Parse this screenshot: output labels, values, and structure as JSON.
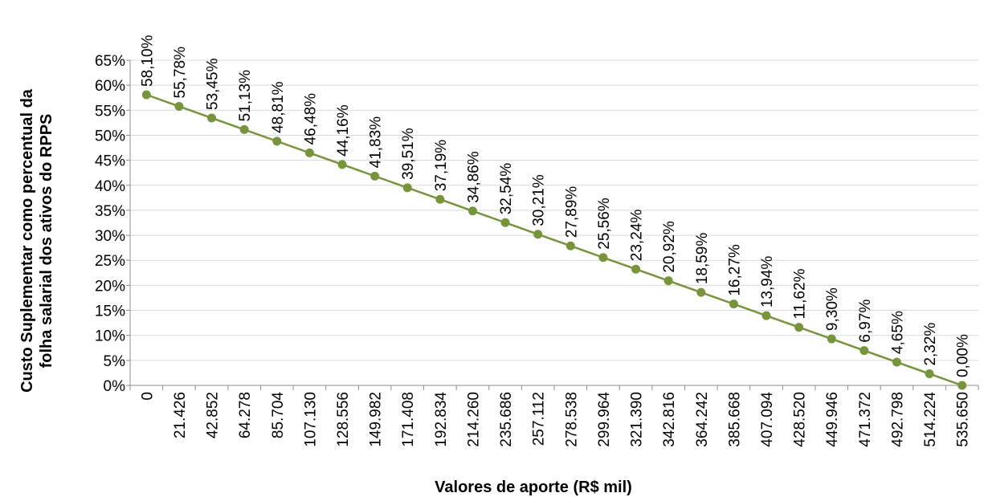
{
  "chart_data": {
    "type": "line",
    "xlabel": "Valores de aporte (R$ mil)",
    "ylabel_lines": [
      "Custo Suplementar como percentual da",
      "folha salarial dos ativos do RPPS"
    ],
    "categories": [
      "0",
      "21.426",
      "42.852",
      "64.278",
      "85.704",
      "107.130",
      "128.556",
      "149.982",
      "171.408",
      "192.834",
      "214.260",
      "235.686",
      "257.112",
      "278.538",
      "299.964",
      "321.390",
      "342.816",
      "364.242",
      "385.668",
      "407.094",
      "428.520",
      "449.946",
      "471.372",
      "492.798",
      "514.224",
      "535.650"
    ],
    "values": [
      58.1,
      55.78,
      53.45,
      51.13,
      48.81,
      46.48,
      44.16,
      41.83,
      39.51,
      37.19,
      34.86,
      32.54,
      30.21,
      27.89,
      25.56,
      23.24,
      20.92,
      18.59,
      16.27,
      13.94,
      11.62,
      9.3,
      6.97,
      4.65,
      2.32,
      0.0
    ],
    "data_labels": [
      "58,10%",
      "55,78%",
      "53,45%",
      "51,13%",
      "48,81%",
      "46,48%",
      "44,16%",
      "41,83%",
      "39,51%",
      "37,19%",
      "34,86%",
      "32,54%",
      "30,21%",
      "27,89%",
      "25,56%",
      "23,24%",
      "20,92%",
      "18,59%",
      "16,27%",
      "13,94%",
      "11,62%",
      "9,30%",
      "6,97%",
      "4,65%",
      "2,32%",
      "0,00%"
    ],
    "y_ticks": [
      0,
      5,
      10,
      15,
      20,
      25,
      30,
      35,
      40,
      45,
      50,
      55,
      60,
      65
    ],
    "y_tick_labels": [
      "0%",
      "5%",
      "10%",
      "15%",
      "20%",
      "25%",
      "30%",
      "35%",
      "40%",
      "45%",
      "50%",
      "55%",
      "60%",
      "65%"
    ],
    "ylim": [
      0,
      65
    ],
    "grid": true,
    "line_color": "#77933C",
    "grid_color": "#D9D9D9"
  }
}
